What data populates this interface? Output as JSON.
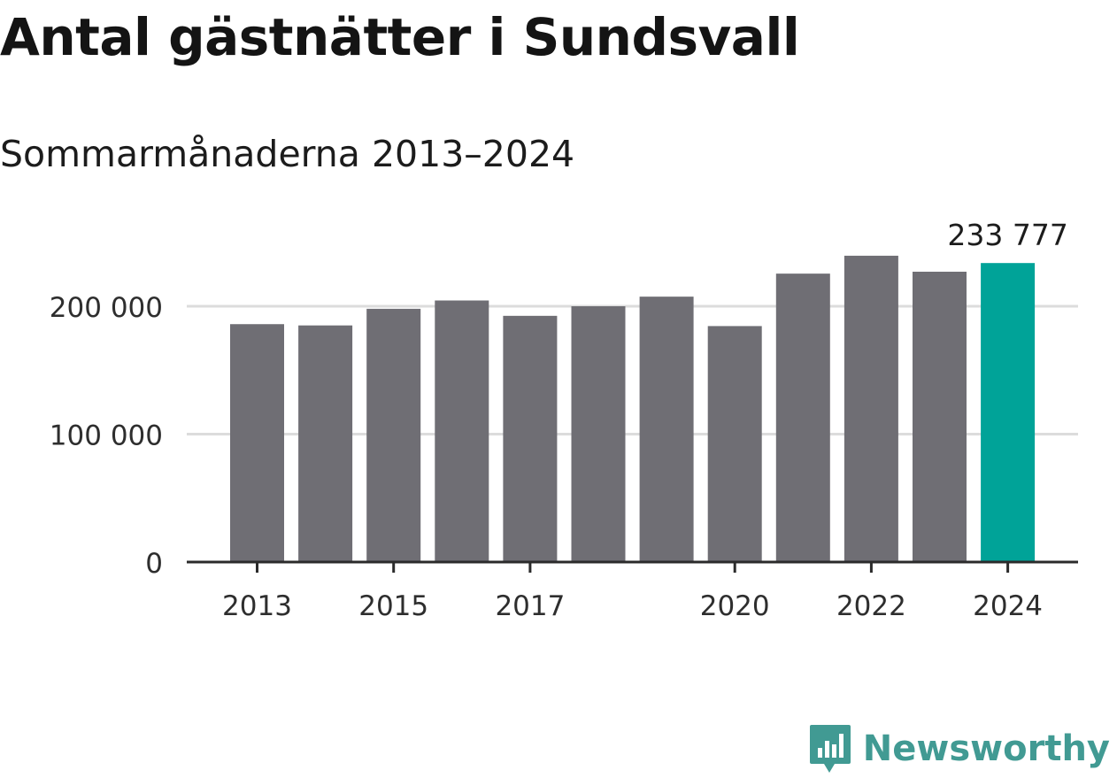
{
  "title": "Antal gästnätter i Sundsvall",
  "subtitle": "Sommarmånaderna 2013–2024",
  "logo_text": "Newsworthy",
  "colors": {
    "bar": "#6f6e74",
    "highlight": "#00a398",
    "grid": "#dcdcdc",
    "axis": "#2b2b2b",
    "logo": "#419a93"
  },
  "chart_data": {
    "type": "bar",
    "title": "Antal gästnätter i Sundsvall",
    "subtitle": "Sommarmånaderna 2013–2024",
    "xlabel": "",
    "ylabel": "",
    "categories": [
      "2013",
      "2014",
      "2015",
      "2016",
      "2017",
      "2018",
      "2019",
      "2020",
      "2021",
      "2022",
      "2023",
      "2024"
    ],
    "values": [
      186000,
      185000,
      198000,
      204500,
      192500,
      200000,
      207500,
      184500,
      225500,
      239500,
      227000,
      233777
    ],
    "x_tick_labels": [
      "2013",
      "",
      "2015",
      "",
      "2017",
      "",
      "",
      "2020",
      "",
      "2022",
      "",
      "2024"
    ],
    "y_ticks": [
      0,
      100000,
      200000
    ],
    "y_tick_labels": [
      "0",
      "100 000",
      "200 000"
    ],
    "ylim": [
      0,
      240000
    ],
    "grid": "horizontal",
    "highlight_index": 11,
    "annotation": {
      "index": 11,
      "text": "233 777"
    }
  }
}
